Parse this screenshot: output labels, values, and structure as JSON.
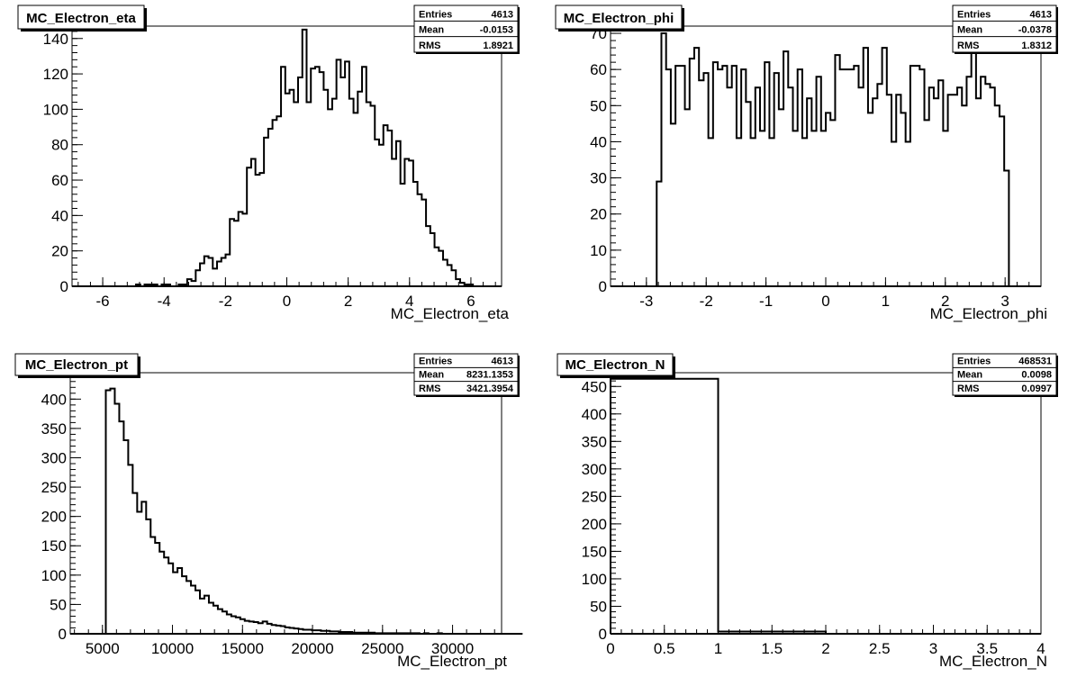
{
  "chart_data": [
    {
      "type": "bar",
      "title": "MC_Electron_eta",
      "xlabel": "MC_Electron_eta",
      "ylabel": "",
      "xlim": [
        -7,
        7
      ],
      "ylim": [
        0,
        147
      ],
      "xticks": [
        "-6",
        "-4",
        "-2",
        "0",
        "2",
        "4",
        "6"
      ],
      "yticks": [
        "0",
        "20",
        "40",
        "60",
        "80",
        "100",
        "120",
        "140"
      ],
      "grid": false,
      "stats": {
        "Entries": "4613",
        "Mean": "-0.0153",
        "RMS": "1.8921"
      },
      "bin_edges": [
        -7,
        6.9
      ],
      "bins": 100,
      "values": [
        0,
        0,
        0,
        0,
        0,
        0,
        0,
        0,
        0,
        0,
        0,
        0,
        0,
        0,
        0,
        1,
        0,
        1,
        1,
        1,
        0,
        1,
        1,
        0,
        0,
        1,
        1,
        4,
        3,
        9,
        13,
        17,
        16,
        10,
        14,
        16,
        18,
        38,
        37,
        42,
        41,
        67,
        72,
        63,
        64,
        84,
        89,
        94,
        96,
        124,
        109,
        111,
        104,
        118,
        145,
        104,
        123,
        124,
        121,
        111,
        100,
        106,
        128,
        118,
        127,
        106,
        98,
        110,
        124,
        104,
        102,
        83,
        80,
        91,
        88,
        72,
        82,
        58,
        72,
        71,
        59,
        52,
        49,
        34,
        30,
        22,
        20,
        15,
        12,
        9,
        4,
        2,
        1,
        1,
        0,
        0,
        0,
        0,
        0,
        0
      ]
    },
    {
      "type": "bar",
      "title": "MC_Electron_phi",
      "xlabel": "MC_Electron_phi",
      "ylabel": "",
      "xlim": [
        -3.6,
        3.6
      ],
      "ylim": [
        0,
        72
      ],
      "xticks": [
        "-3",
        "-2",
        "-1",
        "0",
        "1",
        "2",
        "3"
      ],
      "yticks": [
        "0",
        "10",
        "20",
        "30",
        "40",
        "50",
        "60",
        "70"
      ],
      "grid": false,
      "stats": {
        "Entries": "4613",
        "Mean": "-0.0378",
        "RMS": "1.8312"
      },
      "bins": 80,
      "values": [
        0,
        0,
        0,
        0,
        29,
        70,
        60,
        45,
        61,
        61,
        49,
        63,
        66,
        57,
        59,
        41,
        62,
        60,
        61,
        55,
        61,
        41,
        60,
        51,
        41,
        55,
        43,
        62,
        41,
        59,
        49,
        65,
        55,
        43,
        60,
        41,
        52,
        43,
        58,
        43,
        48,
        46,
        64,
        60,
        60,
        60,
        61,
        55,
        66,
        48,
        52,
        56,
        66,
        53,
        40,
        53,
        48,
        40,
        61,
        61,
        60,
        46,
        55,
        52,
        57,
        43,
        53,
        53,
        55,
        50,
        58,
        67,
        52,
        58,
        56,
        55,
        50,
        47,
        32,
        0
      ]
    },
    {
      "type": "bar",
      "title": "MC_Electron_pt",
      "xlabel": "MC_Electron_pt",
      "ylabel": "",
      "xlim": [
        2700,
        33500
      ],
      "ylim": [
        0,
        445
      ],
      "xticks": [
        "5000",
        "10000",
        "15000",
        "20000",
        "25000",
        "30000"
      ],
      "yticks": [
        "0",
        "50",
        "100",
        "150",
        "200",
        "250",
        "300",
        "350",
        "400"
      ],
      "grid": false,
      "stats": {
        "Entries": "4613",
        "Mean": "8231.1353",
        "RMS": "3421.3954"
      },
      "bins": 100,
      "values": [
        0,
        0,
        0,
        0,
        0,
        0,
        0,
        415,
        418,
        392,
        362,
        330,
        288,
        240,
        208,
        225,
        195,
        165,
        155,
        140,
        130,
        120,
        105,
        112,
        98,
        90,
        82,
        74,
        60,
        65,
        53,
        48,
        42,
        38,
        33,
        30,
        28,
        25,
        22,
        21,
        20,
        18,
        21,
        17,
        15,
        14,
        13,
        11,
        10,
        9,
        8,
        7,
        7,
        6,
        6,
        5,
        5,
        4,
        4,
        3,
        3,
        3,
        2,
        2,
        2,
        2,
        2,
        1,
        1,
        1,
        1,
        1,
        1,
        1,
        1,
        1,
        1,
        0,
        1,
        0,
        0,
        1,
        0,
        0,
        0,
        0,
        0,
        0,
        0,
        0,
        0,
        0,
        0,
        0,
        0,
        0,
        0,
        0,
        0,
        0
      ]
    },
    {
      "type": "bar",
      "title": "MC_Electron_N",
      "xlabel": "MC_Electron_N",
      "ylabel": "",
      "xlim": [
        0,
        4
      ],
      "ylim": [
        0,
        475
      ],
      "xticks": [
        "0",
        "0.5",
        "1",
        "1.5",
        "2",
        "2.5",
        "3",
        "3.5",
        "4"
      ],
      "yticks": [
        "0",
        "50",
        "100",
        "150",
        "200",
        "250",
        "300",
        "350",
        "400",
        "450"
      ],
      "grid": false,
      "stats": {
        "Entries": "468531",
        "Mean": "0.0098",
        "RMS": "0.0997"
      },
      "bins": 4,
      "values": [
        464,
        4,
        0,
        0
      ]
    }
  ]
}
